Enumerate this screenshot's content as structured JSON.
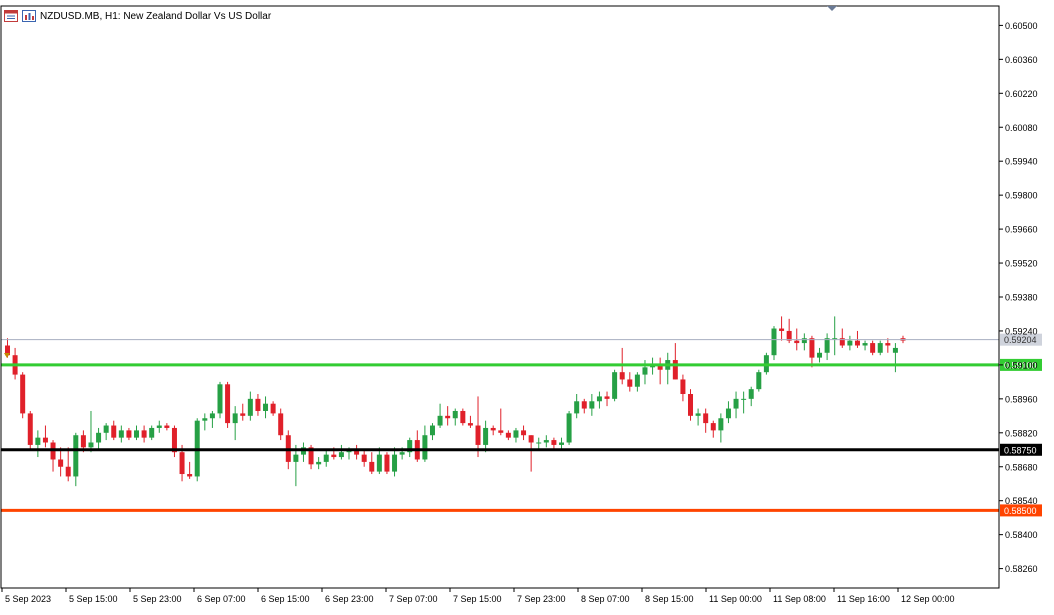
{
  "header": {
    "symbol_label": "NZDUSD.MB, H1:  New Zealand Dollar Vs US Dollar",
    "icons": [
      "table-icon",
      "chart-icon"
    ]
  },
  "colors": {
    "bull_candle": "#26a045",
    "bear_candle": "#e0202a",
    "support_green": "#33cc33",
    "black_line": "#000000",
    "orange_line": "#ff4400",
    "current_price_line": "#a7aec1",
    "frame": "#000000"
  },
  "chart_data": {
    "type": "candlestick",
    "title": "NZDUSD.MB, H1:  New Zealand Dollar Vs US Dollar",
    "ylim": [
      0.5818,
      0.6058
    ],
    "y_ticks": [
      "0.60500",
      "0.60360",
      "0.60220",
      "0.60080",
      "0.59940",
      "0.59800",
      "0.59660",
      "0.59520",
      "0.59380",
      "0.59240",
      "0.59100",
      "0.58960",
      "0.58820",
      "0.58680",
      "0.58540",
      "0.58400",
      "0.58260"
    ],
    "x_ticks": [
      "5 Sep 2023",
      "5 Sep 15:00",
      "5 Sep 23:00",
      "6 Sep 07:00",
      "6 Sep 15:00",
      "6 Sep 23:00",
      "7 Sep 07:00",
      "7 Sep 15:00",
      "7 Sep 23:00",
      "8 Sep 07:00",
      "8 Sep 15:00",
      "11 Sep 00:00",
      "11 Sep 08:00",
      "11 Sep 16:00",
      "12 Sep 00:00"
    ],
    "horizontal_lines": [
      {
        "price": 0.59204,
        "label": "0.59204",
        "kind": "current-price"
      },
      {
        "price": 0.591,
        "label": "0.59100",
        "kind": "green-level"
      },
      {
        "price": 0.5875,
        "label": "0.58750",
        "kind": "black-level"
      },
      {
        "price": 0.585,
        "label": "0.58500",
        "kind": "orange-level"
      }
    ],
    "candles": [
      [
        0.5918,
        0.5921,
        0.5913,
        0.5914
      ],
      [
        0.5914,
        0.5917,
        0.5904,
        0.5906
      ],
      [
        0.5906,
        0.5907,
        0.5888,
        0.589
      ],
      [
        0.589,
        0.5891,
        0.5875,
        0.5877
      ],
      [
        0.5877,
        0.5883,
        0.5872,
        0.588
      ],
      [
        0.588,
        0.5885,
        0.5876,
        0.5878
      ],
      [
        0.5878,
        0.5879,
        0.5866,
        0.5871
      ],
      [
        0.5871,
        0.5876,
        0.5864,
        0.5868
      ],
      [
        0.5868,
        0.5876,
        0.5862,
        0.5864
      ],
      [
        0.5864,
        0.5882,
        0.586,
        0.5881
      ],
      [
        0.5881,
        0.5883,
        0.5874,
        0.5876
      ],
      [
        0.5876,
        0.5891,
        0.5874,
        0.5878
      ],
      [
        0.5878,
        0.5884,
        0.5875,
        0.5882
      ],
      [
        0.5882,
        0.5886,
        0.5879,
        0.5885
      ],
      [
        0.5885,
        0.5887,
        0.5879,
        0.588
      ],
      [
        0.588,
        0.5885,
        0.5878,
        0.5883
      ],
      [
        0.5883,
        0.5884,
        0.5879,
        0.588
      ],
      [
        0.588,
        0.5885,
        0.5879,
        0.5883
      ],
      [
        0.5883,
        0.5885,
        0.5878,
        0.588
      ],
      [
        0.588,
        0.5885,
        0.5879,
        0.5884
      ],
      [
        0.5884,
        0.5887,
        0.5882,
        0.5885
      ],
      [
        0.5885,
        0.5886,
        0.5883,
        0.5884
      ],
      [
        0.5884,
        0.5885,
        0.5872,
        0.5874
      ],
      [
        0.5874,
        0.5877,
        0.5862,
        0.5865
      ],
      [
        0.5865,
        0.587,
        0.5863,
        0.5864
      ],
      [
        0.5864,
        0.5888,
        0.5862,
        0.5887
      ],
      [
        0.5887,
        0.589,
        0.5883,
        0.5888
      ],
      [
        0.5888,
        0.5891,
        0.5884,
        0.589
      ],
      [
        0.589,
        0.5903,
        0.5888,
        0.5902
      ],
      [
        0.5902,
        0.5903,
        0.5884,
        0.5886
      ],
      [
        0.5886,
        0.5893,
        0.5879,
        0.589
      ],
      [
        0.589,
        0.5894,
        0.5887,
        0.5889
      ],
      [
        0.5889,
        0.5899,
        0.5887,
        0.5896
      ],
      [
        0.5896,
        0.5898,
        0.5889,
        0.5891
      ],
      [
        0.5891,
        0.5897,
        0.5888,
        0.5894
      ],
      [
        0.5894,
        0.5895,
        0.5889,
        0.589
      ],
      [
        0.589,
        0.5892,
        0.5879,
        0.5881
      ],
      [
        0.5881,
        0.5883,
        0.5867,
        0.587
      ],
      [
        0.587,
        0.5877,
        0.586,
        0.5873
      ],
      [
        0.5873,
        0.5878,
        0.587,
        0.5876
      ],
      [
        0.5876,
        0.5877,
        0.5867,
        0.5869
      ],
      [
        0.5869,
        0.5872,
        0.5867,
        0.587
      ],
      [
        0.587,
        0.5875,
        0.5868,
        0.5873
      ],
      [
        0.5873,
        0.5876,
        0.5871,
        0.5872
      ],
      [
        0.5872,
        0.5877,
        0.5871,
        0.5874
      ],
      [
        0.5874,
        0.5876,
        0.5871,
        0.5875
      ],
      [
        0.5875,
        0.5877,
        0.5871,
        0.5873
      ],
      [
        0.5873,
        0.5875,
        0.5868,
        0.587
      ],
      [
        0.587,
        0.5874,
        0.5865,
        0.5866
      ],
      [
        0.5866,
        0.5876,
        0.5865,
        0.5873
      ],
      [
        0.5873,
        0.5874,
        0.5865,
        0.5866
      ],
      [
        0.5866,
        0.5876,
        0.5864,
        0.5873
      ],
      [
        0.5873,
        0.5876,
        0.5871,
        0.5874
      ],
      [
        0.5874,
        0.588,
        0.5872,
        0.5879
      ],
      [
        0.5879,
        0.5883,
        0.587,
        0.5871
      ],
      [
        0.5871,
        0.5885,
        0.587,
        0.5881
      ],
      [
        0.5881,
        0.5886,
        0.5879,
        0.5885
      ],
      [
        0.5885,
        0.5894,
        0.5884,
        0.5889
      ],
      [
        0.5889,
        0.5893,
        0.5885,
        0.5888
      ],
      [
        0.5888,
        0.5892,
        0.5885,
        0.5891
      ],
      [
        0.5891,
        0.5892,
        0.5885,
        0.5886
      ],
      [
        0.5886,
        0.5889,
        0.5884,
        0.5885
      ],
      [
        0.5885,
        0.5897,
        0.5872,
        0.5877
      ],
      [
        0.5877,
        0.5887,
        0.5874,
        0.5884
      ],
      [
        0.5884,
        0.5885,
        0.5881,
        0.5883
      ],
      [
        0.5883,
        0.5892,
        0.5881,
        0.5882
      ],
      [
        0.5882,
        0.5883,
        0.5879,
        0.588
      ],
      [
        0.588,
        0.5884,
        0.5878,
        0.5883
      ],
      [
        0.5883,
        0.5885,
        0.5879,
        0.5881
      ],
      [
        0.5881,
        0.5881,
        0.5866,
        0.5878
      ],
      [
        0.5878,
        0.588,
        0.5875,
        0.5878
      ],
      [
        0.5878,
        0.5881,
        0.5876,
        0.5879
      ],
      [
        0.5879,
        0.588,
        0.5875,
        0.5877
      ],
      [
        0.5877,
        0.588,
        0.5875,
        0.5878
      ],
      [
        0.5878,
        0.5891,
        0.5877,
        0.589
      ],
      [
        0.589,
        0.5898,
        0.5888,
        0.5895
      ],
      [
        0.5895,
        0.5896,
        0.589,
        0.5892
      ],
      [
        0.5892,
        0.5898,
        0.5889,
        0.5895
      ],
      [
        0.5895,
        0.5899,
        0.5892,
        0.5897
      ],
      [
        0.5897,
        0.5899,
        0.5893,
        0.5896
      ],
      [
        0.5896,
        0.5908,
        0.5895,
        0.5907
      ],
      [
        0.5907,
        0.5917,
        0.5902,
        0.5904
      ],
      [
        0.5904,
        0.5907,
        0.5899,
        0.5901
      ],
      [
        0.5901,
        0.5907,
        0.5899,
        0.5906
      ],
      [
        0.5906,
        0.5912,
        0.5902,
        0.5909
      ],
      [
        0.5909,
        0.5913,
        0.5906,
        0.591
      ],
      [
        0.591,
        0.5913,
        0.5902,
        0.5908
      ],
      [
        0.5908,
        0.5915,
        0.5902,
        0.5912
      ],
      [
        0.5912,
        0.5919,
        0.5904,
        0.5904
      ],
      [
        0.5904,
        0.5906,
        0.5895,
        0.5898
      ],
      [
        0.5898,
        0.59,
        0.5887,
        0.5889
      ],
      [
        0.5889,
        0.5892,
        0.5885,
        0.589
      ],
      [
        0.589,
        0.5892,
        0.5882,
        0.5886
      ],
      [
        0.5886,
        0.5887,
        0.588,
        0.5883
      ],
      [
        0.5883,
        0.589,
        0.5878,
        0.5888
      ],
      [
        0.5888,
        0.5895,
        0.5886,
        0.5892
      ],
      [
        0.5892,
        0.5899,
        0.5888,
        0.5896
      ],
      [
        0.5896,
        0.5899,
        0.589,
        0.5896
      ],
      [
        0.5896,
        0.5901,
        0.5893,
        0.59
      ],
      [
        0.59,
        0.5908,
        0.5899,
        0.5907
      ],
      [
        0.5907,
        0.5915,
        0.5906,
        0.5914
      ],
      [
        0.5914,
        0.5926,
        0.5912,
        0.5925
      ],
      [
        0.5925,
        0.593,
        0.592,
        0.5924
      ],
      [
        0.5924,
        0.5929,
        0.5919,
        0.592
      ],
      [
        0.592,
        0.5925,
        0.5916,
        0.5919
      ],
      [
        0.5919,
        0.5923,
        0.5916,
        0.5921
      ],
      [
        0.5921,
        0.5922,
        0.5909,
        0.5913
      ],
      [
        0.5913,
        0.5917,
        0.5911,
        0.5915
      ],
      [
        0.5915,
        0.5923,
        0.5912,
        0.5921
      ],
      [
        0.5921,
        0.593,
        0.5914,
        0.5921
      ],
      [
        0.5921,
        0.5925,
        0.5917,
        0.5918
      ],
      [
        0.5918,
        0.5922,
        0.5916,
        0.592
      ],
      [
        0.592,
        0.5924,
        0.5917,
        0.5918
      ],
      [
        0.5918,
        0.592,
        0.5916,
        0.5919
      ],
      [
        0.5919,
        0.592,
        0.5914,
        0.5915
      ],
      [
        0.5915,
        0.592,
        0.5914,
        0.5919
      ],
      [
        0.5919,
        0.5921,
        0.5915,
        0.5918
      ],
      [
        0.5915,
        0.5919,
        0.5907,
        0.5917
      ],
      [
        0.5921,
        0.5922,
        0.5919,
        0.592
      ]
    ]
  }
}
